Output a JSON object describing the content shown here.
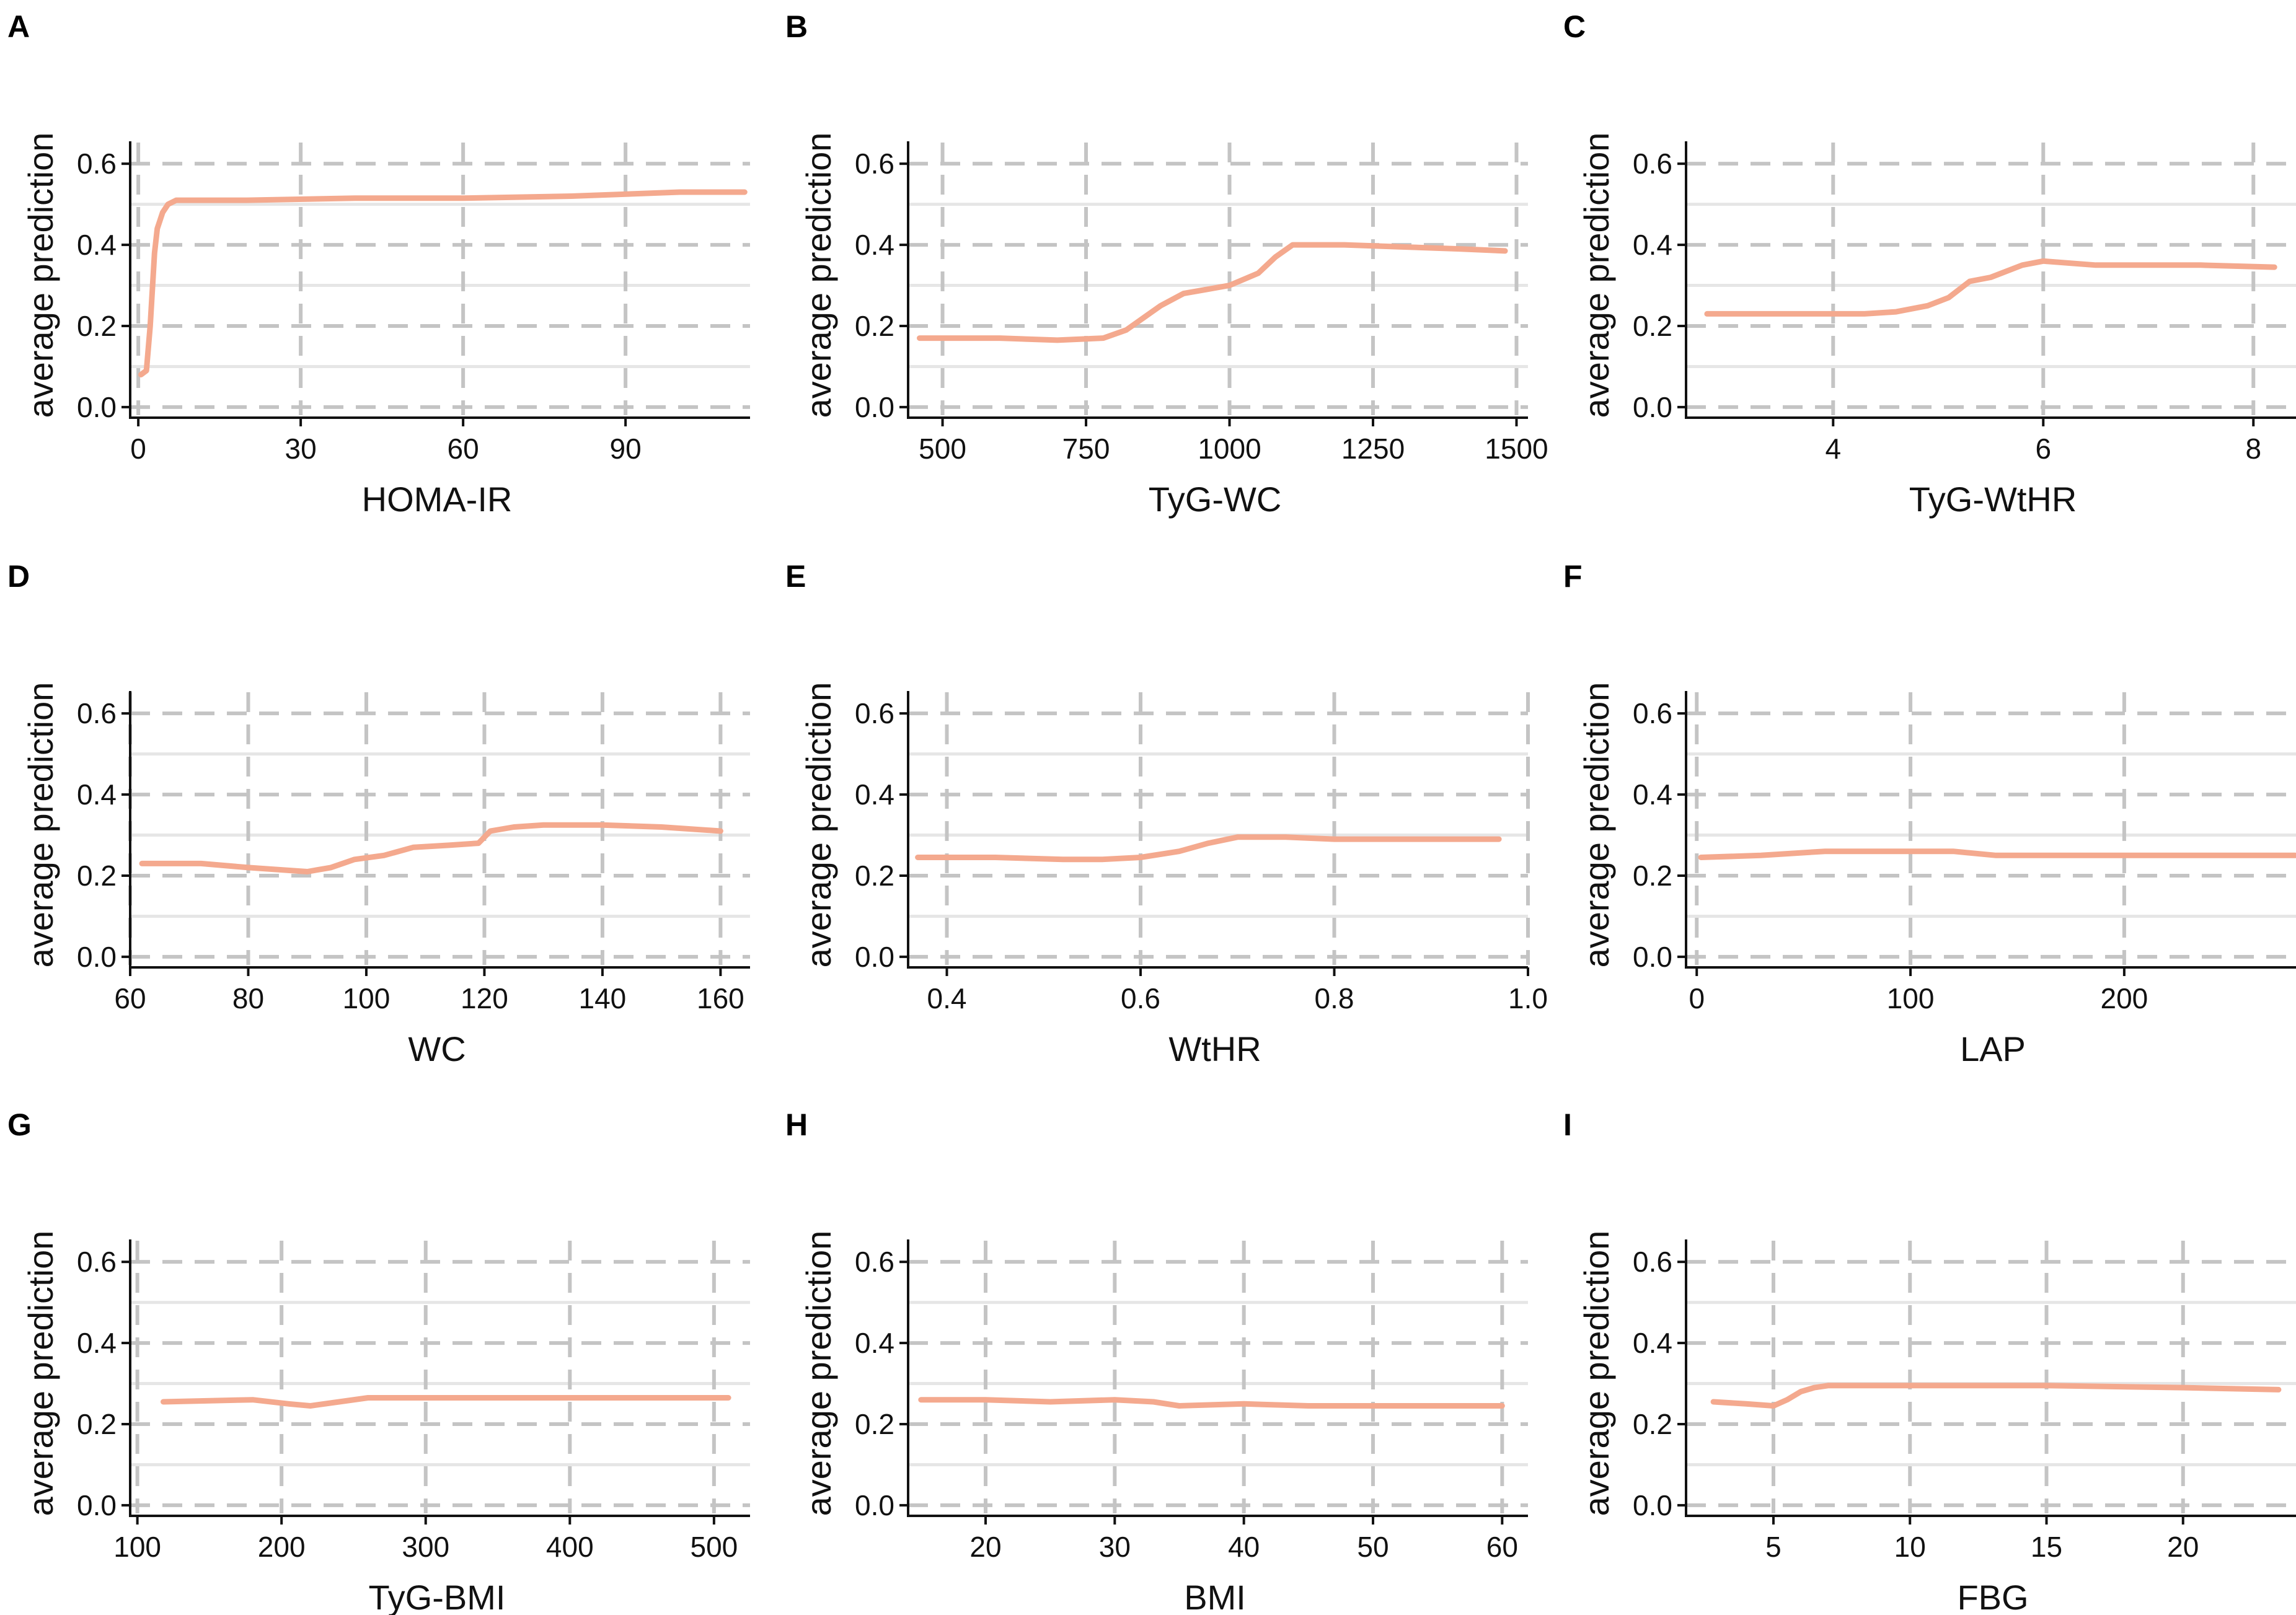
{
  "figure": {
    "line_color": "#f4a98e",
    "grid_color": "#c4c4c4",
    "minor_grid_color": "#e6e6e6",
    "axis_color": "#111111"
  },
  "chart_data": [
    {
      "panel": "A",
      "type": "line",
      "xlabel": "HOMA-IR",
      "ylabel": "average prediction",
      "xlim": [
        -1.5,
        113
      ],
      "ylim": [
        -0.02,
        0.64
      ],
      "xticks": [
        0,
        30,
        60,
        90
      ],
      "xtick_labels": [
        "0",
        "30",
        "60",
        "90"
      ],
      "yticks": [
        0.0,
        0.2,
        0.4,
        0.6
      ],
      "ytick_labels": [
        "0.0",
        "0.2",
        "0.4",
        "0.6"
      ],
      "x": [
        0.5,
        1.5,
        2.2,
        3.0,
        3.5,
        4.5,
        5.5,
        7.0,
        8.5,
        10,
        20,
        40,
        60,
        80,
        100,
        112
      ],
      "y": [
        0.08,
        0.09,
        0.2,
        0.38,
        0.44,
        0.48,
        0.5,
        0.51,
        0.51,
        0.51,
        0.51,
        0.515,
        0.515,
        0.52,
        0.53,
        0.53
      ]
    },
    {
      "panel": "B",
      "type": "line",
      "xlabel": "TyG-WC",
      "ylabel": "average prediction",
      "xlim": [
        440,
        1520
      ],
      "ylim": [
        -0.02,
        0.64
      ],
      "xticks": [
        500,
        750,
        1000,
        1250,
        1500
      ],
      "xtick_labels": [
        "500",
        "750",
        "1000",
        "1250",
        "1500"
      ],
      "yticks": [
        0.0,
        0.2,
        0.4,
        0.6
      ],
      "ytick_labels": [
        "0.0",
        "0.2",
        "0.4",
        "0.6"
      ],
      "x": [
        460,
        600,
        700,
        780,
        820,
        850,
        880,
        920,
        960,
        1000,
        1050,
        1080,
        1110,
        1200,
        1300,
        1400,
        1480
      ],
      "y": [
        0.17,
        0.17,
        0.165,
        0.17,
        0.19,
        0.22,
        0.25,
        0.28,
        0.29,
        0.3,
        0.33,
        0.37,
        0.4,
        0.4,
        0.395,
        0.39,
        0.385
      ]
    },
    {
      "panel": "C",
      "type": "line",
      "xlabel": "TyG-WtHR",
      "ylabel": "average prediction",
      "xlim": [
        2.6,
        8.5
      ],
      "ylim": [
        -0.02,
        0.64
      ],
      "xticks": [
        4,
        6,
        8
      ],
      "xtick_labels": [
        "4",
        "6",
        "8"
      ],
      "yticks": [
        0.0,
        0.2,
        0.4,
        0.6
      ],
      "ytick_labels": [
        "0.0",
        "0.2",
        "0.4",
        "0.6"
      ],
      "x": [
        2.8,
        3.5,
        4.3,
        4.6,
        4.9,
        5.1,
        5.3,
        5.5,
        5.8,
        6.0,
        6.5,
        7.0,
        7.5,
        8.2
      ],
      "y": [
        0.23,
        0.23,
        0.23,
        0.235,
        0.25,
        0.27,
        0.31,
        0.32,
        0.35,
        0.36,
        0.35,
        0.35,
        0.35,
        0.345
      ]
    },
    {
      "panel": "D",
      "type": "line",
      "xlabel": "WC",
      "ylabel": "average prediction",
      "xlim": [
        60,
        165
      ],
      "ylim": [
        -0.02,
        0.64
      ],
      "xticks": [
        60,
        80,
        100,
        120,
        140,
        160
      ],
      "xtick_labels": [
        "60",
        "80",
        "100",
        "120",
        "140",
        "160"
      ],
      "yticks": [
        0.0,
        0.2,
        0.4,
        0.6
      ],
      "ytick_labels": [
        "0.0",
        "0.2",
        "0.4",
        "0.6"
      ],
      "x": [
        62,
        72,
        80,
        90,
        94,
        98,
        103,
        108,
        114,
        119,
        121,
        125,
        130,
        140,
        150,
        160
      ],
      "y": [
        0.23,
        0.23,
        0.22,
        0.21,
        0.22,
        0.24,
        0.25,
        0.27,
        0.275,
        0.28,
        0.31,
        0.32,
        0.325,
        0.325,
        0.32,
        0.31
      ]
    },
    {
      "panel": "E",
      "type": "line",
      "xlabel": "WtHR",
      "ylabel": "average prediction",
      "xlim": [
        0.36,
        1.0
      ],
      "ylim": [
        -0.02,
        0.64
      ],
      "xticks": [
        0.4,
        0.6,
        0.8,
        1.0
      ],
      "xtick_labels": [
        "0.4",
        "0.6",
        "0.8",
        "1.0"
      ],
      "yticks": [
        0.0,
        0.2,
        0.4,
        0.6
      ],
      "ytick_labels": [
        "0.0",
        "0.2",
        "0.4",
        "0.6"
      ],
      "x": [
        0.37,
        0.45,
        0.52,
        0.56,
        0.6,
        0.64,
        0.67,
        0.7,
        0.75,
        0.8,
        0.9,
        0.97
      ],
      "y": [
        0.245,
        0.245,
        0.24,
        0.24,
        0.245,
        0.26,
        0.28,
        0.295,
        0.295,
        0.29,
        0.29,
        0.29
      ]
    },
    {
      "panel": "F",
      "type": "line",
      "xlabel": "LAP",
      "ylabel": "average prediction",
      "xlim": [
        -5,
        285
      ],
      "ylim": [
        -0.02,
        0.64
      ],
      "xticks": [
        0,
        100,
        200
      ],
      "xtick_labels": [
        "0",
        "100",
        "200"
      ],
      "yticks": [
        0.0,
        0.2,
        0.4,
        0.6
      ],
      "ytick_labels": [
        "0.0",
        "0.2",
        "0.4",
        "0.6"
      ],
      "x": [
        2,
        30,
        60,
        90,
        120,
        140,
        200,
        280
      ],
      "y": [
        0.245,
        0.25,
        0.26,
        0.26,
        0.26,
        0.25,
        0.25,
        0.25
      ]
    },
    {
      "panel": "G",
      "type": "line",
      "xlabel": "TyG-BMI",
      "ylabel": "average prediction",
      "xlim": [
        95,
        525
      ],
      "ylim": [
        -0.02,
        0.64
      ],
      "xticks": [
        100,
        200,
        300,
        400,
        500
      ],
      "xtick_labels": [
        "100",
        "200",
        "300",
        "400",
        "500"
      ],
      "yticks": [
        0.0,
        0.2,
        0.4,
        0.6
      ],
      "ytick_labels": [
        "0.0",
        "0.2",
        "0.4",
        "0.6"
      ],
      "x": [
        118,
        180,
        205,
        220,
        240,
        260,
        300,
        350,
        400,
        460,
        510
      ],
      "y": [
        0.255,
        0.26,
        0.25,
        0.245,
        0.255,
        0.265,
        0.265,
        0.265,
        0.265,
        0.265,
        0.265
      ]
    },
    {
      "panel": "H",
      "type": "line",
      "xlabel": "BMI",
      "ylabel": "average prediction",
      "xlim": [
        14,
        62
      ],
      "ylim": [
        -0.02,
        0.64
      ],
      "xticks": [
        20,
        30,
        40,
        50,
        60
      ],
      "xtick_labels": [
        "20",
        "30",
        "40",
        "50",
        "60"
      ],
      "yticks": [
        0.0,
        0.2,
        0.4,
        0.6
      ],
      "ytick_labels": [
        "0.0",
        "0.2",
        "0.4",
        "0.6"
      ],
      "x": [
        15,
        20,
        25,
        30,
        33,
        35,
        40,
        45,
        50,
        55,
        60
      ],
      "y": [
        0.26,
        0.26,
        0.255,
        0.26,
        0.255,
        0.245,
        0.25,
        0.245,
        0.245,
        0.245,
        0.245
      ]
    },
    {
      "panel": "I",
      "type": "line",
      "xlabel": "FBG",
      "ylabel": "average prediction",
      "xlim": [
        1.8,
        24.5
      ],
      "ylim": [
        -0.02,
        0.64
      ],
      "xticks": [
        5,
        10,
        15,
        20
      ],
      "xtick_labels": [
        "5",
        "10",
        "15",
        "20"
      ],
      "yticks": [
        0.0,
        0.2,
        0.4,
        0.6
      ],
      "ytick_labels": [
        "0.0",
        "0.2",
        "0.4",
        "0.6"
      ],
      "x": [
        2.8,
        4.0,
        5.0,
        5.5,
        6.0,
        6.5,
        7.0,
        8.0,
        10,
        15,
        20,
        23.5
      ],
      "y": [
        0.255,
        0.25,
        0.245,
        0.26,
        0.28,
        0.29,
        0.295,
        0.295,
        0.295,
        0.295,
        0.29,
        0.285
      ]
    }
  ]
}
